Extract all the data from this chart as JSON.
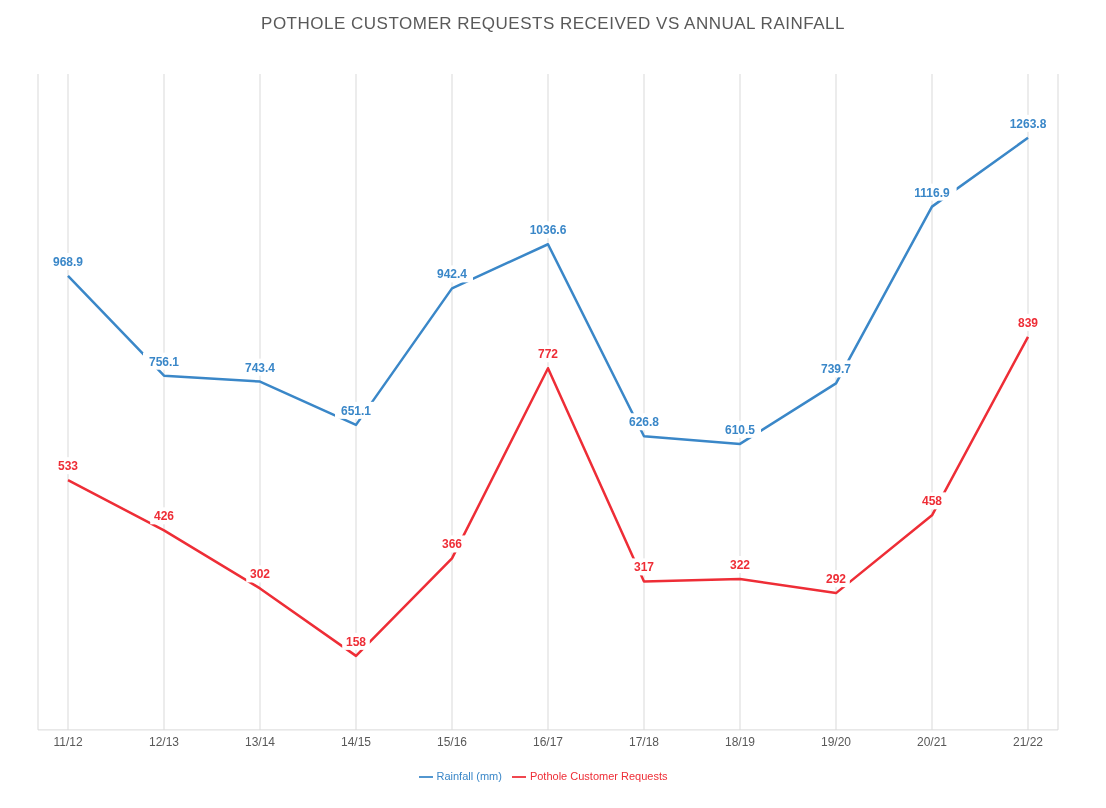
{
  "chart_data": {
    "type": "line",
    "title": "POTHOLE CUSTOMER REQUESTS RECEIVED VS ANNUAL RAINFALL",
    "categories": [
      "11/12",
      "12/13",
      "13/14",
      "14/15",
      "15/16",
      "16/17",
      "17/18",
      "18/19",
      "19/20",
      "20/21",
      "21/22"
    ],
    "series": [
      {
        "name": "Rainfall (mm)",
        "color": "#3a87c8",
        "values": [
          968.9,
          756.1,
          743.4,
          651.1,
          942.4,
          1036.6,
          626.8,
          610.5,
          739.7,
          1116.9,
          1263.8
        ]
      },
      {
        "name": "Pothole Customer Requests",
        "color": "#ee2d36",
        "values": [
          533,
          426,
          302,
          158,
          366,
          772,
          317,
          322,
          292,
          458,
          839
        ]
      }
    ],
    "data_labels": true,
    "grid": "x",
    "legend": "bottom",
    "marker": "none",
    "line_style": "solid",
    "tick_labels": "x"
  }
}
